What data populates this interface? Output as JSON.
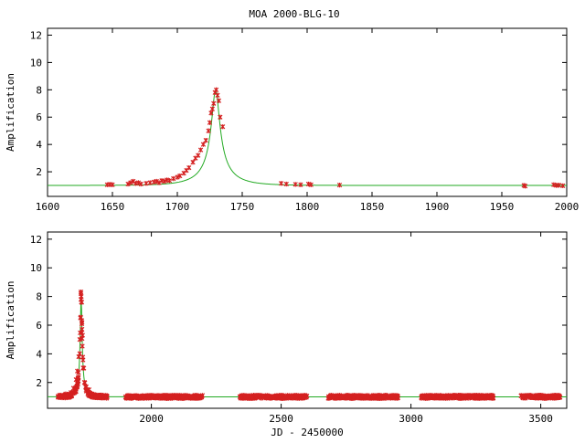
{
  "title": "MOA 2000-BLG-10",
  "colors": {
    "data_points": "#d42020",
    "model_curve": "#22aa22",
    "axes": "#000000"
  },
  "chart_data": [
    {
      "type": "scatter",
      "title": "MOA 2000-BLG-10",
      "xlabel": "",
      "ylabel": "Amplification",
      "xlim": [
        1600,
        2000
      ],
      "ylim": [
        0.2,
        12.5
      ],
      "x_ticks": [
        "1600",
        "1650",
        "1700",
        "1750",
        "1800",
        "1850",
        "1900",
        "1950",
        "2000"
      ],
      "y_ticks": [
        "2",
        "4",
        "6",
        "8",
        "10",
        "12"
      ],
      "grid": false,
      "legend": "none",
      "model": {
        "t0": 1729.5,
        "u0": 0.126,
        "tE": 24.5
      },
      "series": [
        {
          "x": [
            1646,
            1648,
            1650,
            1662,
            1664,
            1666,
            1668,
            1670,
            1672,
            1676,
            1679,
            1682,
            1684,
            1686,
            1688,
            1690,
            1692,
            1694,
            1697,
            1700,
            1702,
            1705,
            1707,
            1709,
            1712,
            1714,
            1716,
            1718,
            1720,
            1722,
            1724,
            1725,
            1726,
            1727,
            1728,
            1729,
            1730,
            1731,
            1732,
            1733,
            1735,
            1780,
            1784,
            1791,
            1795,
            1801,
            1803,
            1825,
            1967,
            1968,
            1990,
            1992,
            1994,
            1997
          ],
          "y": [
            1.05,
            1.08,
            1.05,
            1.1,
            1.2,
            1.3,
            1.15,
            1.2,
            1.1,
            1.15,
            1.2,
            1.25,
            1.3,
            1.2,
            1.35,
            1.3,
            1.4,
            1.35,
            1.5,
            1.6,
            1.7,
            1.9,
            2.1,
            2.3,
            2.7,
            3.0,
            3.2,
            3.6,
            4.0,
            4.3,
            5.0,
            5.6,
            6.3,
            6.6,
            7.0,
            7.8,
            8.0,
            7.6,
            7.2,
            6.0,
            5.3,
            1.15,
            1.1,
            1.08,
            1.05,
            1.1,
            1.05,
            1.03,
            1.0,
            0.95,
            1.05,
            1.0,
            1.02,
            0.98
          ]
        }
      ]
    },
    {
      "type": "scatter",
      "title": "",
      "xlabel": "JD - 2450000",
      "ylabel": "Amplification",
      "xlim": [
        1600,
        3600
      ],
      "ylim": [
        0.2,
        12.5
      ],
      "x_ticks": [
        "2000",
        "2500",
        "3000",
        "3500"
      ],
      "y_ticks": [
        "2",
        "4",
        "6",
        "8",
        "10",
        "12"
      ],
      "grid": false,
      "legend": "none",
      "model": {
        "t0": 1729.5,
        "u0": 0.126,
        "tE": 24.5
      },
      "observing_seasons": [
        [
          1640,
          1705
        ],
        [
          1705,
          1745
        ],
        [
          1745,
          1830
        ],
        [
          1900,
          2200
        ],
        [
          2340,
          2600
        ],
        [
          2680,
          2950
        ],
        [
          3040,
          3320
        ],
        [
          3420,
          3575
        ]
      ],
      "series": [
        {
          "x": [
            1650,
            1670,
            1690,
            1700,
            1710,
            1715,
            1720,
            1724,
            1727,
            1729,
            1730,
            1731,
            1733,
            1735,
            1740,
            1760,
            1780,
            1800,
            1820
          ],
          "y": [
            1.1,
            1.2,
            1.3,
            1.6,
            2.2,
            2.8,
            3.8,
            5.0,
            6.5,
            7.8,
            8.0,
            7.6,
            6.2,
            5.3,
            3.0,
            1.5,
            1.15,
            1.1,
            1.05
          ]
        }
      ]
    }
  ]
}
